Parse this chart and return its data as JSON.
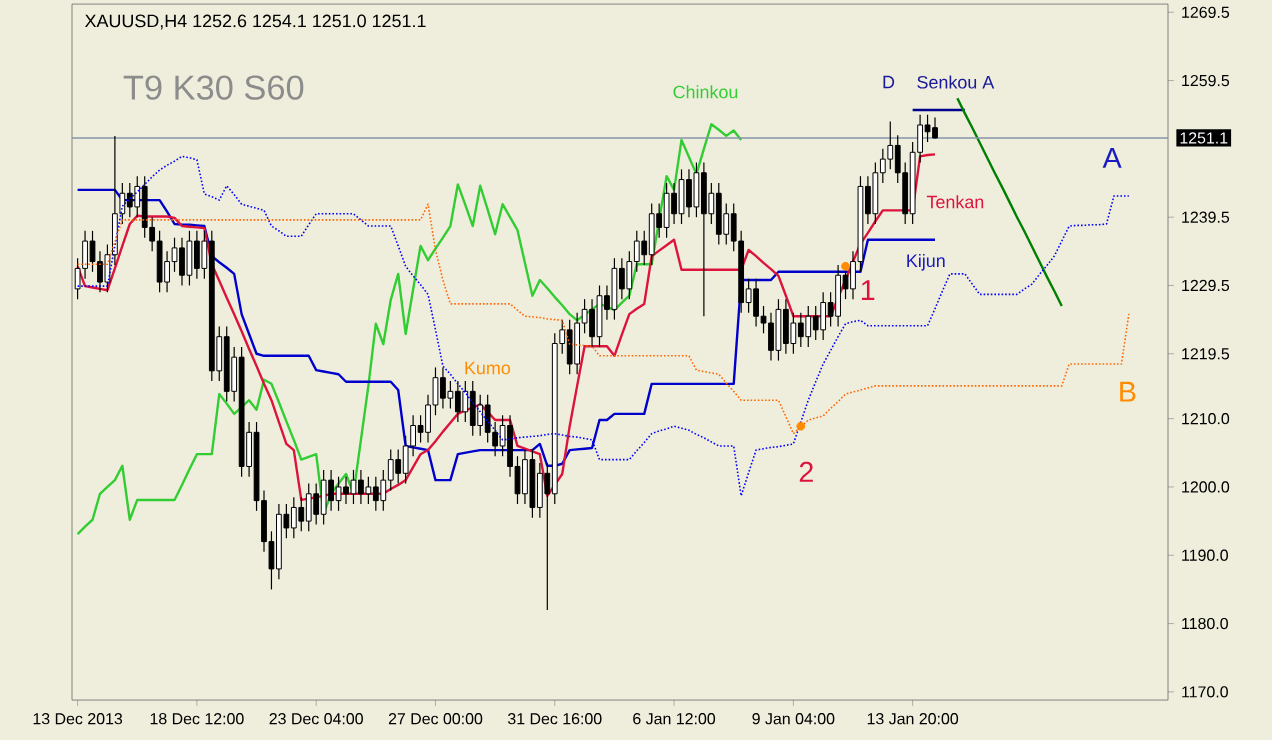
{
  "chart_data": {
    "type": "candlestick",
    "title": "XAUUSD,H4  1252.6 1254.1 1251.0 1251.1",
    "subtitle": "T9 K30 S60",
    "ylim": [
      1168.8,
      1270.7
    ],
    "yticks": [
      {
        "value": 1170,
        "label": "1170.0"
      },
      {
        "value": 1180,
        "label": "1180.0"
      },
      {
        "value": 1190,
        "label": "1190.0"
      },
      {
        "value": 1200,
        "label": "1200.0"
      },
      {
        "value": 1210,
        "label": "1210.0"
      },
      1219.5,
      1229.5,
      1239.5,
      1259.5,
      1269.5
    ],
    "categories": [
      "13 Dec 2013",
      null,
      null,
      null,
      null,
      null,
      null,
      null,
      null,
      null,
      null,
      null,
      null,
      null,
      null,
      null,
      "18 Dec 12:00",
      null,
      null,
      null,
      null,
      null,
      null,
      null,
      null,
      null,
      null,
      null,
      null,
      null,
      null,
      null,
      "23 Dec 04:00",
      null,
      null,
      null,
      null,
      null,
      null,
      null,
      null,
      null,
      null,
      null,
      null,
      null,
      null,
      null,
      "27 Dec 00:00",
      null,
      null,
      null,
      null,
      null,
      null,
      null,
      null,
      null,
      null,
      null,
      null,
      null,
      null,
      null,
      "31 Dec 16:00",
      null,
      null,
      null,
      null,
      null,
      null,
      null,
      null,
      null,
      null,
      null,
      null,
      null,
      null,
      null,
      "6 Jan 12:00",
      null,
      null,
      null,
      null,
      null,
      null,
      null,
      null,
      null,
      null,
      null,
      null,
      null,
      null,
      null,
      "9 Jan 04:00",
      null,
      null,
      null,
      null,
      null,
      null,
      null,
      null,
      null,
      null,
      null,
      null,
      null,
      null,
      null,
      "13 Jan 20:00",
      null,
      null,
      null,
      null,
      null,
      null,
      null,
      null,
      null,
      null,
      null,
      null,
      null,
      null,
      null,
      null,
      null,
      null,
      null,
      null,
      null,
      null,
      null,
      null,
      null,
      null,
      null,
      null,
      null
    ],
    "ohlc": [
      [
        1229,
        1233.5,
        1227.5,
        1232
      ],
      [
        1232,
        1237.5,
        1230.5,
        1236
      ],
      [
        1236,
        1237.5,
        1231.5,
        1233
      ],
      [
        1233,
        1234.5,
        1228.5,
        1230
      ],
      [
        1230,
        1235.5,
        1228.5,
        1234
      ],
      [
        1234,
        1251.4,
        1232.5,
        1240
      ],
      [
        1240,
        1244.5,
        1238.5,
        1243
      ],
      [
        1243,
        1244.5,
        1239.5,
        1241
      ],
      [
        1241,
        1245.5,
        1239.5,
        1244
      ],
      [
        1244,
        1245.5,
        1236.5,
        1238
      ],
      [
        1238,
        1239.5,
        1234.5,
        1236
      ],
      [
        1236,
        1237.5,
        1228.5,
        1230
      ],
      [
        1230,
        1234.5,
        1228.5,
        1233
      ],
      [
        1233,
        1236.5,
        1231.5,
        1235
      ],
      [
        1235,
        1236.5,
        1229.5,
        1231
      ],
      [
        1231,
        1237.5,
        1229.5,
        1236
      ],
      [
        1236,
        1237.5,
        1230.5,
        1232
      ],
      [
        1232,
        1237.5,
        1230.5,
        1236
      ],
      [
        1236,
        1237.5,
        1215.5,
        1217
      ],
      [
        1217,
        1223.5,
        1215.5,
        1222
      ],
      [
        1222,
        1223.5,
        1212.5,
        1214
      ],
      [
        1214,
        1220.5,
        1212.5,
        1219
      ],
      [
        1219,
        1220.5,
        1201.5,
        1203
      ],
      [
        1203,
        1209.5,
        1201.5,
        1208
      ],
      [
        1208,
        1209.5,
        1196.5,
        1198
      ],
      [
        1198,
        1199.5,
        1190.5,
        1192
      ],
      [
        1192,
        1193.5,
        1185,
        1188
      ],
      [
        1188,
        1197.5,
        1186.5,
        1196
      ],
      [
        1196,
        1197.5,
        1192.5,
        1194
      ],
      [
        1194,
        1198.5,
        1192.5,
        1197
      ],
      [
        1197,
        1198.5,
        1193.5,
        1195
      ],
      [
        1195,
        1200.5,
        1193.5,
        1199
      ],
      [
        1199,
        1200.5,
        1194.5,
        1196
      ],
      [
        1196,
        1202.5,
        1194.5,
        1201
      ],
      [
        1201,
        1202.5,
        1196.5,
        1198
      ],
      [
        1198,
        1201.5,
        1196.5,
        1200
      ],
      [
        1200,
        1201.5,
        1197.5,
        1199
      ],
      [
        1199,
        1202.5,
        1197.5,
        1201
      ],
      [
        1201,
        1202.5,
        1197.5,
        1199
      ],
      [
        1199,
        1201.5,
        1197.5,
        1200
      ],
      [
        1200,
        1201.5,
        1196.5,
        1198
      ],
      [
        1198,
        1202.5,
        1196.5,
        1201
      ],
      [
        1201,
        1205.5,
        1199.5,
        1204
      ],
      [
        1204,
        1205.5,
        1200.5,
        1202
      ],
      [
        1202,
        1207.5,
        1200.5,
        1206
      ],
      [
        1206,
        1210.5,
        1204.5,
        1209
      ],
      [
        1209,
        1210.5,
        1206.5,
        1208
      ],
      [
        1208,
        1213.5,
        1206.5,
        1212
      ],
      [
        1212,
        1217.5,
        1210.5,
        1216
      ],
      [
        1216,
        1217.5,
        1211.5,
        1213
      ],
      [
        1213,
        1215.5,
        1211.5,
        1214
      ],
      [
        1214,
        1215.5,
        1209.5,
        1211
      ],
      [
        1211,
        1215.5,
        1209.5,
        1214
      ],
      [
        1214,
        1215.5,
        1207.5,
        1209
      ],
      [
        1209,
        1213.5,
        1207.5,
        1212
      ],
      [
        1212,
        1213.5,
        1206.5,
        1208
      ],
      [
        1208,
        1209.5,
        1204.5,
        1206
      ],
      [
        1206,
        1210.5,
        1204.5,
        1209
      ],
      [
        1209,
        1210.5,
        1201.5,
        1203
      ],
      [
        1203,
        1204.5,
        1197.5,
        1199
      ],
      [
        1199,
        1205.5,
        1197.5,
        1204
      ],
      [
        1204,
        1205.5,
        1195.5,
        1197
      ],
      [
        1197,
        1203.5,
        1195.5,
        1202
      ],
      [
        1202,
        1203.5,
        1182,
        1199
      ],
      [
        1199,
        1222.5,
        1197.5,
        1221
      ],
      [
        1221,
        1224.5,
        1219.5,
        1223
      ],
      [
        1223,
        1224.5,
        1216.5,
        1218
      ],
      [
        1218,
        1225.5,
        1216.5,
        1224
      ],
      [
        1224,
        1227.5,
        1222.5,
        1226
      ],
      [
        1226,
        1227.5,
        1220.5,
        1222
      ],
      [
        1222,
        1229.5,
        1220.5,
        1228
      ],
      [
        1228,
        1229.5,
        1224.5,
        1226
      ],
      [
        1226,
        1233.5,
        1224.5,
        1232
      ],
      [
        1232,
        1233.5,
        1227.5,
        1229
      ],
      [
        1229,
        1234.5,
        1227.5,
        1233
      ],
      [
        1233,
        1237.5,
        1231.5,
        1236
      ],
      [
        1236,
        1237.5,
        1232.5,
        1234
      ],
      [
        1234,
        1241.5,
        1232.5,
        1240
      ],
      [
        1240,
        1241.5,
        1236.5,
        1238
      ],
      [
        1238,
        1244.5,
        1236.5,
        1243
      ],
      [
        1243,
        1244.5,
        1238.5,
        1240
      ],
      [
        1240,
        1246.5,
        1238.5,
        1245
      ],
      [
        1245,
        1246.5,
        1239.5,
        1241
      ],
      [
        1241,
        1247.5,
        1239.5,
        1246
      ],
      [
        1246,
        1247.5,
        1225,
        1240
      ],
      [
        1240,
        1244.5,
        1238.5,
        1243
      ],
      [
        1243,
        1244.5,
        1235.5,
        1237
      ],
      [
        1237,
        1241.5,
        1235.5,
        1240
      ],
      [
        1240,
        1241.5,
        1234.5,
        1236
      ],
      [
        1236,
        1237.5,
        1225.5,
        1227
      ],
      [
        1227,
        1230.5,
        1225.5,
        1229
      ],
      [
        1229,
        1230.5,
        1223.5,
        1225
      ],
      [
        1225,
        1226.5,
        1222.5,
        1224
      ],
      [
        1224,
        1225.5,
        1218.5,
        1220
      ],
      [
        1220,
        1227.5,
        1218.5,
        1226
      ],
      [
        1226,
        1227.5,
        1219.5,
        1221
      ],
      [
        1221,
        1225.5,
        1219.5,
        1224
      ],
      [
        1224,
        1225.5,
        1220.5,
        1222
      ],
      [
        1222,
        1226.5,
        1220.5,
        1225
      ],
      [
        1225,
        1226.5,
        1221.5,
        1223
      ],
      [
        1223,
        1228.5,
        1221.5,
        1227
      ],
      [
        1227,
        1228.5,
        1223.5,
        1225
      ],
      [
        1225,
        1232.5,
        1223.5,
        1231
      ],
      [
        1231,
        1232.5,
        1227.5,
        1229
      ],
      [
        1229,
        1234.5,
        1227.5,
        1233
      ],
      [
        1233,
        1245.5,
        1231.5,
        1244
      ],
      [
        1244,
        1245.5,
        1238.5,
        1240
      ],
      [
        1240,
        1247.5,
        1238.5,
        1246
      ],
      [
        1246,
        1249.5,
        1244.5,
        1248
      ],
      [
        1248,
        1253.5,
        1246.5,
        1250
      ],
      [
        1250,
        1251.5,
        1244.5,
        1246
      ],
      [
        1246,
        1247.5,
        1238.5,
        1240
      ],
      [
        1240,
        1250.5,
        1238.5,
        1249
      ],
      [
        1249,
        1254.5,
        1247.5,
        1253
      ],
      [
        1253,
        1254.5,
        1250.5,
        1252
      ],
      [
        1252.6,
        1254.1,
        1251.0,
        1251.1
      ],
      null,
      null,
      null,
      null,
      null,
      null,
      null,
      null,
      null,
      null,
      null,
      null,
      null,
      null,
      null,
      null,
      null,
      null,
      null,
      null,
      null,
      null,
      null,
      null,
      null,
      null
    ],
    "series": [
      {
        "type": "line",
        "color": "#0000ff",
        "line_style": "dotted",
        "values": [
          1229.4,
          1229.4,
          1229.4,
          1229.4,
          1229.4,
          1235.3,
          1241.1,
          1242.2,
          1243.2,
          1244.3,
          1245.4,
          1246.4,
          1247.1,
          1247.7,
          1248.4,
          1248.2,
          1247.9,
          1242.9,
          1242.5,
          1242.0,
          1244.1,
          1242.8,
          1241.4,
          1241.1,
          1240.8,
          1240.5,
          1238.2,
          1237.5,
          1236.7,
          1236.7,
          1236.7,
          1238.4,
          1240.0,
          1240.0,
          1240.0,
          1240.0,
          1240.0,
          1240.0,
          1239.1,
          1238.2,
          1238.2,
          1238.2,
          1238.2,
          1235.3,
          1232.3,
          1230.9,
          1229.6,
          1228.2,
          1223.0,
          1217.7,
          1216.5,
          1215.1,
          1213.8,
          1212.4,
          1211.0,
          1209.6,
          1208.3,
          1206.9,
          1207.0,
          1207.2,
          1207.3,
          1207.4,
          1207.5,
          1207.7,
          1207.8,
          1207.6,
          1207.4,
          1207.3,
          1207.1,
          1206.9,
          1204.0,
          1204.0,
          1204.0,
          1204.0,
          1204.0,
          1205.3,
          1206.5,
          1207.8,
          1208.2,
          1208.5,
          1208.9,
          1208.6,
          1208.3,
          1207.7,
          1207.2,
          1206.6,
          1206.0,
          1206.0,
          1206.0,
          1198.7,
          1202.1,
          1205.4,
          1205.6,
          1205.8,
          1205.9,
          1206.1,
          1206.3,
          1209.5,
          1212.7,
          1215.4,
          1218.0,
          1220.0,
          1222.0,
          1223.9,
          1224.2,
          1224.4,
          1223.6,
          1223.6,
          1223.6,
          1223.6,
          1223.6,
          1223.6,
          1223.6,
          1223.6,
          1223.6,
          1226.1,
          1228.7,
          1231.2,
          1231.2,
          1231.2,
          1229.7,
          1228.2,
          1228.2,
          1228.2,
          1228.2,
          1228.2,
          1228.2,
          1229.0,
          1229.7,
          1231.1,
          1232.4,
          1233.8,
          1236.0,
          1238.2,
          1238.3,
          1238.3,
          1238.4,
          1238.4,
          1238.5,
          1242.6,
          1242.6,
          1242.6
        ]
      },
      {
        "type": "line",
        "color": "#ff6600",
        "line_style": "dotted",
        "values": [
          1232.6,
          1232.6,
          1232.6,
          1232.6,
          1232.6,
          1235.9,
          1239.1,
          1239.1,
          1239.1,
          1239.1,
          1239.1,
          1239.1,
          1239.1,
          1239.1,
          1239.1,
          1239.1,
          1239.1,
          1239.1,
          1239.1,
          1239.1,
          1239.1,
          1239.1,
          1239.1,
          1239.1,
          1239.1,
          1239.1,
          1239.1,
          1239.1,
          1239.1,
          1239.1,
          1239.1,
          1239.1,
          1239.1,
          1239.1,
          1239.1,
          1239.1,
          1239.1,
          1239.1,
          1239.1,
          1239.1,
          1239.1,
          1239.1,
          1239.1,
          1239.1,
          1239.1,
          1239.1,
          1239.1,
          1241.4,
          1234.7,
          1230.3,
          1226.8,
          1226.8,
          1226.8,
          1226.8,
          1226.8,
          1226.8,
          1226.8,
          1226.8,
          1226.8,
          1225.9,
          1225.0,
          1224.9,
          1224.8,
          1224.6,
          1224.5,
          1224.4,
          1220.9,
          1220.8,
          1220.7,
          1220.6,
          1219.2,
          1219.2,
          1219.2,
          1219.2,
          1219.2,
          1219.2,
          1219.2,
          1219.2,
          1219.2,
          1219.2,
          1219.2,
          1219.2,
          1219.2,
          1217.1,
          1216.9,
          1216.7,
          1216.5,
          1215.2,
          1214.0,
          1212.7,
          1212.7,
          1212.7,
          1212.7,
          1212.7,
          1212.7,
          1210.3,
          1207.8,
          1208.8,
          1209.8,
          1210.1,
          1210.4,
          1211.5,
          1212.5,
          1213.6,
          1213.9,
          1214.2,
          1214.5,
          1214.8,
          1214.8,
          1214.8,
          1214.8,
          1214.8,
          1214.8,
          1214.8,
          1214.8,
          1214.8,
          1214.8,
          1214.8,
          1214.8,
          1214.8,
          1214.8,
          1214.8,
          1214.8,
          1214.8,
          1214.8,
          1214.8,
          1214.8,
          1214.8,
          1214.8,
          1214.8,
          1214.8,
          1214.8,
          1214.8,
          1218.0,
          1218.0,
          1218.0,
          1218.0,
          1218.0,
          1218.0,
          1218.0,
          1218.0,
          1225.3
        ]
      },
      {
        "type": "line",
        "color": "#32cd32",
        "line_style": "solid",
        "values": [
          1193.1,
          1194.2,
          1195.2,
          1199.0,
          1200.0,
          1201.0,
          1203.1,
          1195.2,
          1198.1,
          1198.1,
          1198.1,
          1198.1,
          1198.1,
          1198.1,
          1200.3,
          1202.6,
          1204.8,
          1204.8,
          1204.8,
          1213.6,
          1212.2,
          1210.7,
          1211.7,
          1212.7,
          1211.3,
          1215.7,
          1215.1,
          1212.4,
          1209.6,
          1206.9,
          1204.0,
          1204.4,
          1204.8,
          1196.1,
          1199.0,
          1200.5,
          1201.9,
          1199.0,
          1206.9,
          1214.8,
          1223.9,
          1220.9,
          1227.4,
          1231.2,
          1222.4,
          1228.9,
          1235.3,
          1233.2,
          1234.9,
          1236.5,
          1238.2,
          1244.3,
          1241.3,
          1238.2,
          1244.1,
          1240.6,
          1237.0,
          1241.4,
          1239.5,
          1237.6,
          1232.8,
          1228.0,
          1230.3,
          1229.1,
          1227.8,
          1226.6,
          1225.3,
          1224.4,
          1225.2,
          1226.0,
          1226.8,
          1226.4,
          1225.9,
          1227.0,
          1228.0,
          1232.6,
          1232.6,
          1232.6,
          1239.1,
          1245.5,
          1243.5,
          1250.8,
          1248.3,
          1245.8,
          1249.5,
          1253.1,
          1252.3,
          1251.4,
          1252.2,
          1250.8,
          null,
          null,
          null,
          null,
          null,
          null,
          null,
          null,
          null,
          null,
          null,
          null,
          null,
          null,
          null,
          null,
          null,
          null,
          null,
          null,
          null,
          null,
          null,
          null,
          null,
          null,
          null,
          null,
          null,
          null,
          null,
          null,
          null,
          null,
          null,
          null,
          null,
          null,
          null,
          null,
          null,
          null,
          null,
          null,
          null,
          null,
          null,
          null,
          null,
          null,
          null,
          null
        ]
      },
      {
        "type": "line",
        "color": "#0000cd",
        "line_style": "solid",
        "values": [
          1243.5,
          1243.5,
          1243.5,
          1243.5,
          1243.5,
          1243.5,
          1242.0,
          1242.0,
          1242.0,
          1242.0,
          1242.0,
          1242.0,
          1240.3,
          1238.5,
          1238.4,
          1238.4,
          1238.3,
          1238.2,
          1233.8,
          1232.9,
          1232.1,
          1231.2,
          1225.3,
          1222.4,
          1219.5,
          1219.2,
          1219.2,
          1219.2,
          1219.2,
          1219.2,
          1219.2,
          1219.2,
          1217.1,
          1216.9,
          1216.7,
          1216.5,
          1215.4,
          1215.4,
          1215.4,
          1215.4,
          1215.4,
          1215.4,
          1215.4,
          1214.2,
          1206.0,
          1205.8,
          1205.6,
          1205.4,
          1201.0,
          1201.0,
          1201.0,
          1204.8,
          1205.0,
          1205.2,
          1205.4,
          1205.4,
          1205.4,
          1205.4,
          1205.4,
          1205.4,
          1205.4,
          1205.4,
          1206.3,
          1203.1,
          1203.1,
          1203.4,
          1205.4,
          1205.5,
          1205.6,
          1205.7,
          1209.8,
          1209.8,
          1210.7,
          1210.7,
          1210.7,
          1210.7,
          1210.7,
          1215.1,
          1215.1,
          1215.1,
          1215.1,
          1215.1,
          1215.1,
          1215.1,
          1215.1,
          1215.1,
          1215.1,
          1215.1,
          1215.1,
          1230.3,
          1230.3,
          1230.3,
          1230.3,
          1230.3,
          1231.5,
          1231.5,
          1231.5,
          1231.5,
          1231.5,
          1231.5,
          1231.5,
          1231.5,
          1231.5,
          1231.5,
          1231.5,
          1231.5,
          1236.2,
          1236.2,
          1236.2,
          1236.2,
          1236.2,
          1236.2,
          1236.2,
          1236.2,
          1236.2,
          1236.2,
          null,
          null,
          null,
          null,
          null,
          null,
          null,
          null,
          null,
          null,
          null,
          null,
          null,
          null,
          null,
          null,
          null,
          null,
          null,
          null,
          null,
          null,
          null,
          null,
          null,
          null
        ]
      },
      {
        "type": "line",
        "color": "#dc143c",
        "line_style": "solid",
        "values": [
          1232.3,
          1229.4,
          1229.2,
          1229.0,
          1228.8,
          1232.0,
          1235.3,
          1238.5,
          1239.7,
          1239.6,
          1239.6,
          1239.6,
          1239.6,
          1239.4,
          1238.2,
          1238.1,
          1238.0,
          1237.9,
          1232.6,
          1230.2,
          1227.7,
          1225.3,
          1222.8,
          1220.2,
          1217.7,
          1215.1,
          1212.7,
          1209.5,
          1206.3,
          1205.4,
          1198.1,
          1198.3,
          1198.5,
          1198.7,
          1199.0,
          1199.0,
          1199.0,
          1199.0,
          1199.0,
          1199.0,
          1199.0,
          1199.0,
          1199.7,
          1200.3,
          1201.0,
          1202.9,
          1204.8,
          1205.4,
          1206.7,
          1208.1,
          1209.4,
          1210.7,
          1211.2,
          1211.6,
          1212.1,
          1211.0,
          1209.8,
          1209.8,
          1209.8,
          1206.0,
          1205.6,
          1205.2,
          1204.8,
          1198.7,
          1200.3,
          1201.9,
          1208.9,
          1214.8,
          1220.6,
          1220.6,
          1220.6,
          1220.6,
          1219.2,
          1222.3,
          1225.3,
          1226.1,
          1226.8,
          1233.8,
          1234.6,
          1235.4,
          1236.2,
          1231.8,
          1231.8,
          1231.8,
          1231.8,
          1231.8,
          1231.8,
          1231.8,
          1231.8,
          1231.8,
          1234.7,
          1233.8,
          1232.8,
          1231.9,
          1230.9,
          1228.0,
          1225.0,
          1225.0,
          1225.0,
          1225.0,
          1225.0,
          1225.0,
          1227.7,
          1230.3,
          1233.0,
          1235.6,
          1237.2,
          1238.9,
          1240.5,
          1240.5,
          1240.5,
          1240.5,
          1240.5,
          1248.4,
          1248.6,
          1248.7,
          null,
          null,
          null,
          null,
          null,
          null,
          null,
          null,
          null,
          null,
          null,
          null,
          null,
          null,
          null,
          null,
          null,
          null,
          null,
          null,
          null,
          null,
          null,
          null,
          null,
          null
        ]
      },
      {
        "type": "line",
        "color": "#00008b",
        "line_style": "solid",
        "values": [
          null,
          null,
          null,
          null,
          null,
          null,
          null,
          null,
          null,
          null,
          null,
          null,
          null,
          null,
          null,
          null,
          null,
          null,
          null,
          null,
          null,
          null,
          null,
          null,
          null,
          null,
          null,
          null,
          null,
          null,
          null,
          null,
          null,
          null,
          null,
          null,
          null,
          null,
          null,
          null,
          null,
          null,
          null,
          null,
          null,
          null,
          null,
          null,
          null,
          null,
          null,
          null,
          null,
          null,
          null,
          null,
          null,
          null,
          null,
          null,
          null,
          null,
          null,
          null,
          null,
          null,
          null,
          null,
          null,
          null,
          null,
          null,
          null,
          null,
          null,
          null,
          null,
          null,
          null,
          null,
          null,
          null,
          null,
          null,
          null,
          null,
          null,
          null,
          null,
          null,
          null,
          null,
          null,
          null,
          null,
          null,
          null,
          null,
          null,
          null,
          null,
          null,
          null,
          null,
          null,
          null,
          null,
          null,
          null,
          null,
          null,
          null,
          1255.2,
          1255.2,
          1255.2,
          1255.2,
          1255.2,
          1255.2,
          1255.2,
          1255.2,
          null,
          null,
          null,
          null,
          null,
          null,
          null,
          null,
          null,
          null,
          null,
          null,
          null,
          null,
          null,
          null,
          null,
          null,
          null,
          null,
          null,
          null
        ]
      },
      {
        "type": "line",
        "color": "#008000",
        "line_style": "solid",
        "values": [
          null,
          null,
          null,
          null,
          null,
          null,
          null,
          null,
          null,
          null,
          null,
          null,
          null,
          null,
          null,
          null,
          null,
          null,
          null,
          null,
          null,
          null,
          null,
          null,
          null,
          null,
          null,
          null,
          null,
          null,
          null,
          null,
          null,
          null,
          null,
          null,
          null,
          null,
          null,
          null,
          null,
          null,
          null,
          null,
          null,
          null,
          null,
          null,
          null,
          null,
          null,
          null,
          null,
          null,
          null,
          null,
          null,
          null,
          null,
          null,
          null,
          null,
          null,
          null,
          null,
          null,
          null,
          null,
          null,
          null,
          null,
          null,
          null,
          null,
          null,
          null,
          null,
          null,
          null,
          null,
          null,
          null,
          null,
          null,
          null,
          null,
          null,
          null,
          null,
          null,
          null,
          null,
          null,
          null,
          null,
          null,
          null,
          null,
          null,
          null,
          null,
          null,
          null,
          null,
          null,
          null,
          null,
          null,
          null,
          null,
          null,
          null,
          null,
          null,
          null,
          null,
          null,
          null,
          1256.9,
          1254.7,
          1252.6,
          1250.4,
          1248.2,
          1246.0,
          1243.9,
          1241.7,
          1239.5,
          1237.4,
          1235.2,
          1233.0,
          1230.8,
          1228.7,
          1226.5,
          null,
          null,
          null,
          null,
          null,
          null,
          null,
          null,
          null
        ]
      },
      {
        "type": "scatter",
        "color": "#ff8c00",
        "marker": "circle",
        "values": [
          null,
          null,
          null,
          null,
          null,
          null,
          null,
          null,
          null,
          null,
          null,
          null,
          null,
          null,
          null,
          null,
          null,
          null,
          null,
          null,
          null,
          null,
          null,
          null,
          null,
          null,
          null,
          null,
          null,
          null,
          null,
          null,
          null,
          null,
          null,
          null,
          null,
          null,
          null,
          null,
          null,
          null,
          null,
          null,
          null,
          null,
          null,
          null,
          null,
          null,
          null,
          null,
          null,
          null,
          null,
          null,
          null,
          null,
          null,
          null,
          null,
          null,
          null,
          null,
          null,
          null,
          null,
          null,
          null,
          null,
          null,
          null,
          null,
          null,
          null,
          null,
          null,
          null,
          null,
          null,
          null,
          null,
          null,
          null,
          null,
          null,
          null,
          null,
          null,
          null,
          null,
          null,
          null,
          null,
          null,
          null,
          null,
          1208.9,
          null,
          null,
          null,
          null,
          null,
          1232.3,
          null,
          null,
          null,
          null,
          null,
          null,
          null,
          null,
          null,
          null,
          null,
          null,
          null,
          null,
          null,
          null,
          null,
          null,
          null,
          null,
          null,
          null,
          null,
          null,
          null,
          null,
          null,
          null,
          null,
          null,
          null,
          null,
          null,
          null,
          null,
          null,
          null,
          null
        ]
      }
    ],
    "ref_lines": [
      {
        "axis": "y",
        "value": 1251.1,
        "label": "1251.1",
        "color": "#8496a8"
      }
    ],
    "annotations": [
      "Chinkou",
      "D",
      "Senkou A",
      "Tenkan",
      "Kijun",
      "Kumo",
      "1",
      "2",
      "A",
      "B"
    ]
  }
}
